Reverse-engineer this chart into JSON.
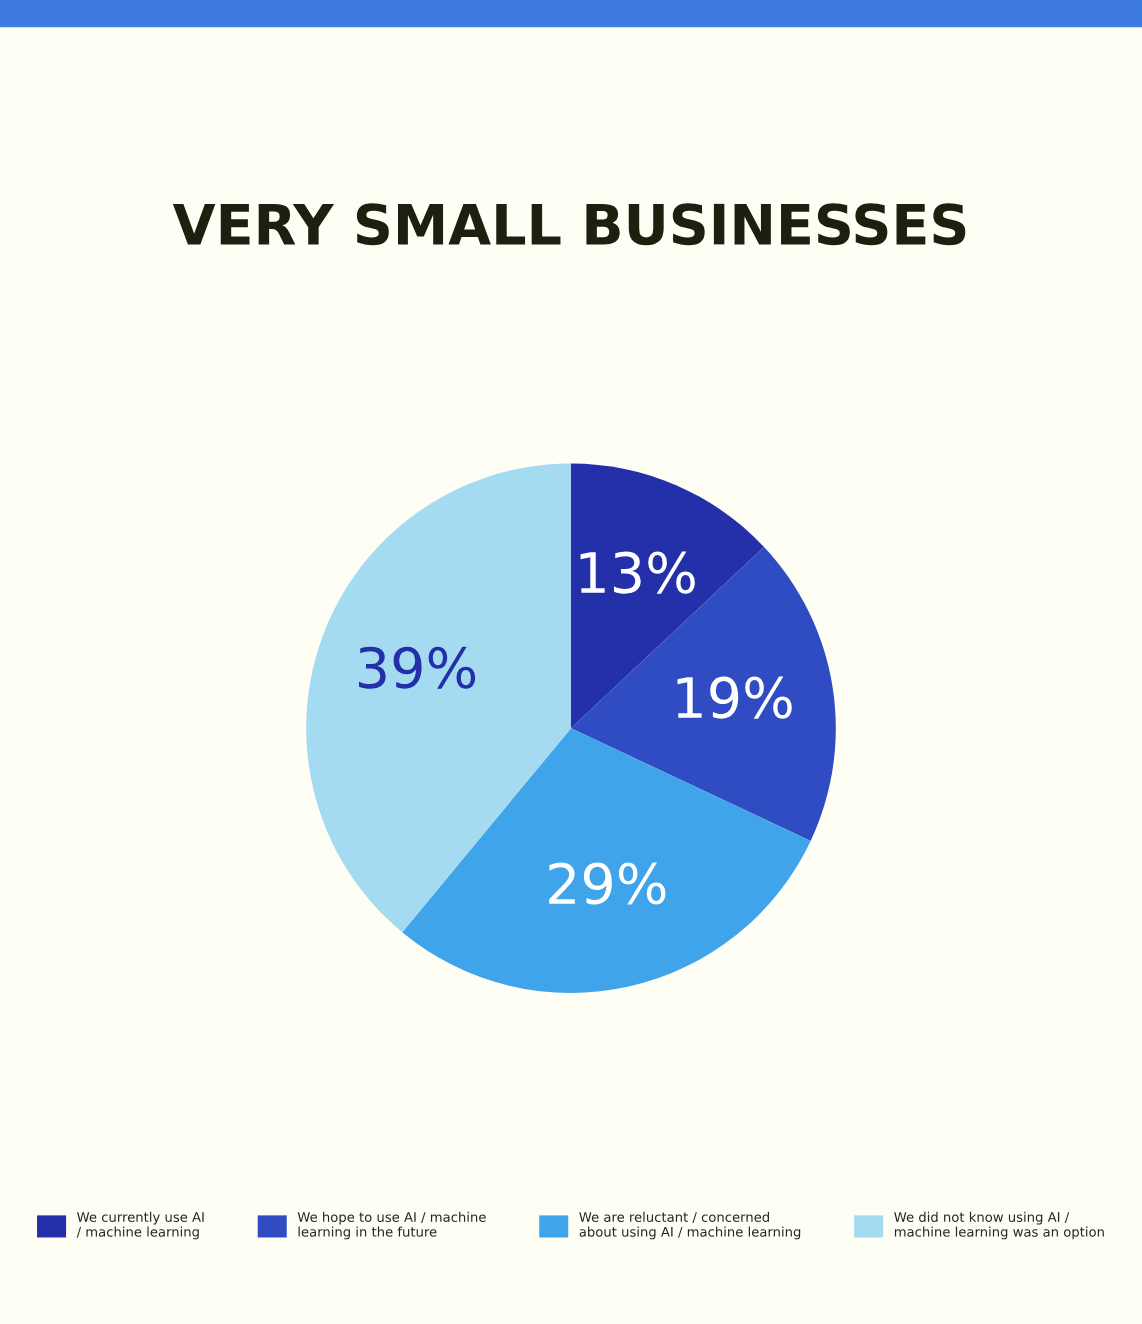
{
  "chart_data": {
    "type": "pie",
    "title": "VERY SMALL BUSINESSES",
    "categories": [
      "We currently use AI / machine learning",
      "We hope to use AI / machine learning in the future",
      "We are reluctant / concerned about using AI / machine learning",
      "We did not know using AI / machine learning was an option"
    ],
    "values": [
      13,
      19,
      29,
      39
    ],
    "colors": [
      "#2430a9",
      "#2f4cc2",
      "#3fa4e9",
      "#a4dbf1"
    ],
    "value_labels": [
      "13%",
      "19%",
      "29%",
      "39%"
    ],
    "legend": "bottom"
  }
}
